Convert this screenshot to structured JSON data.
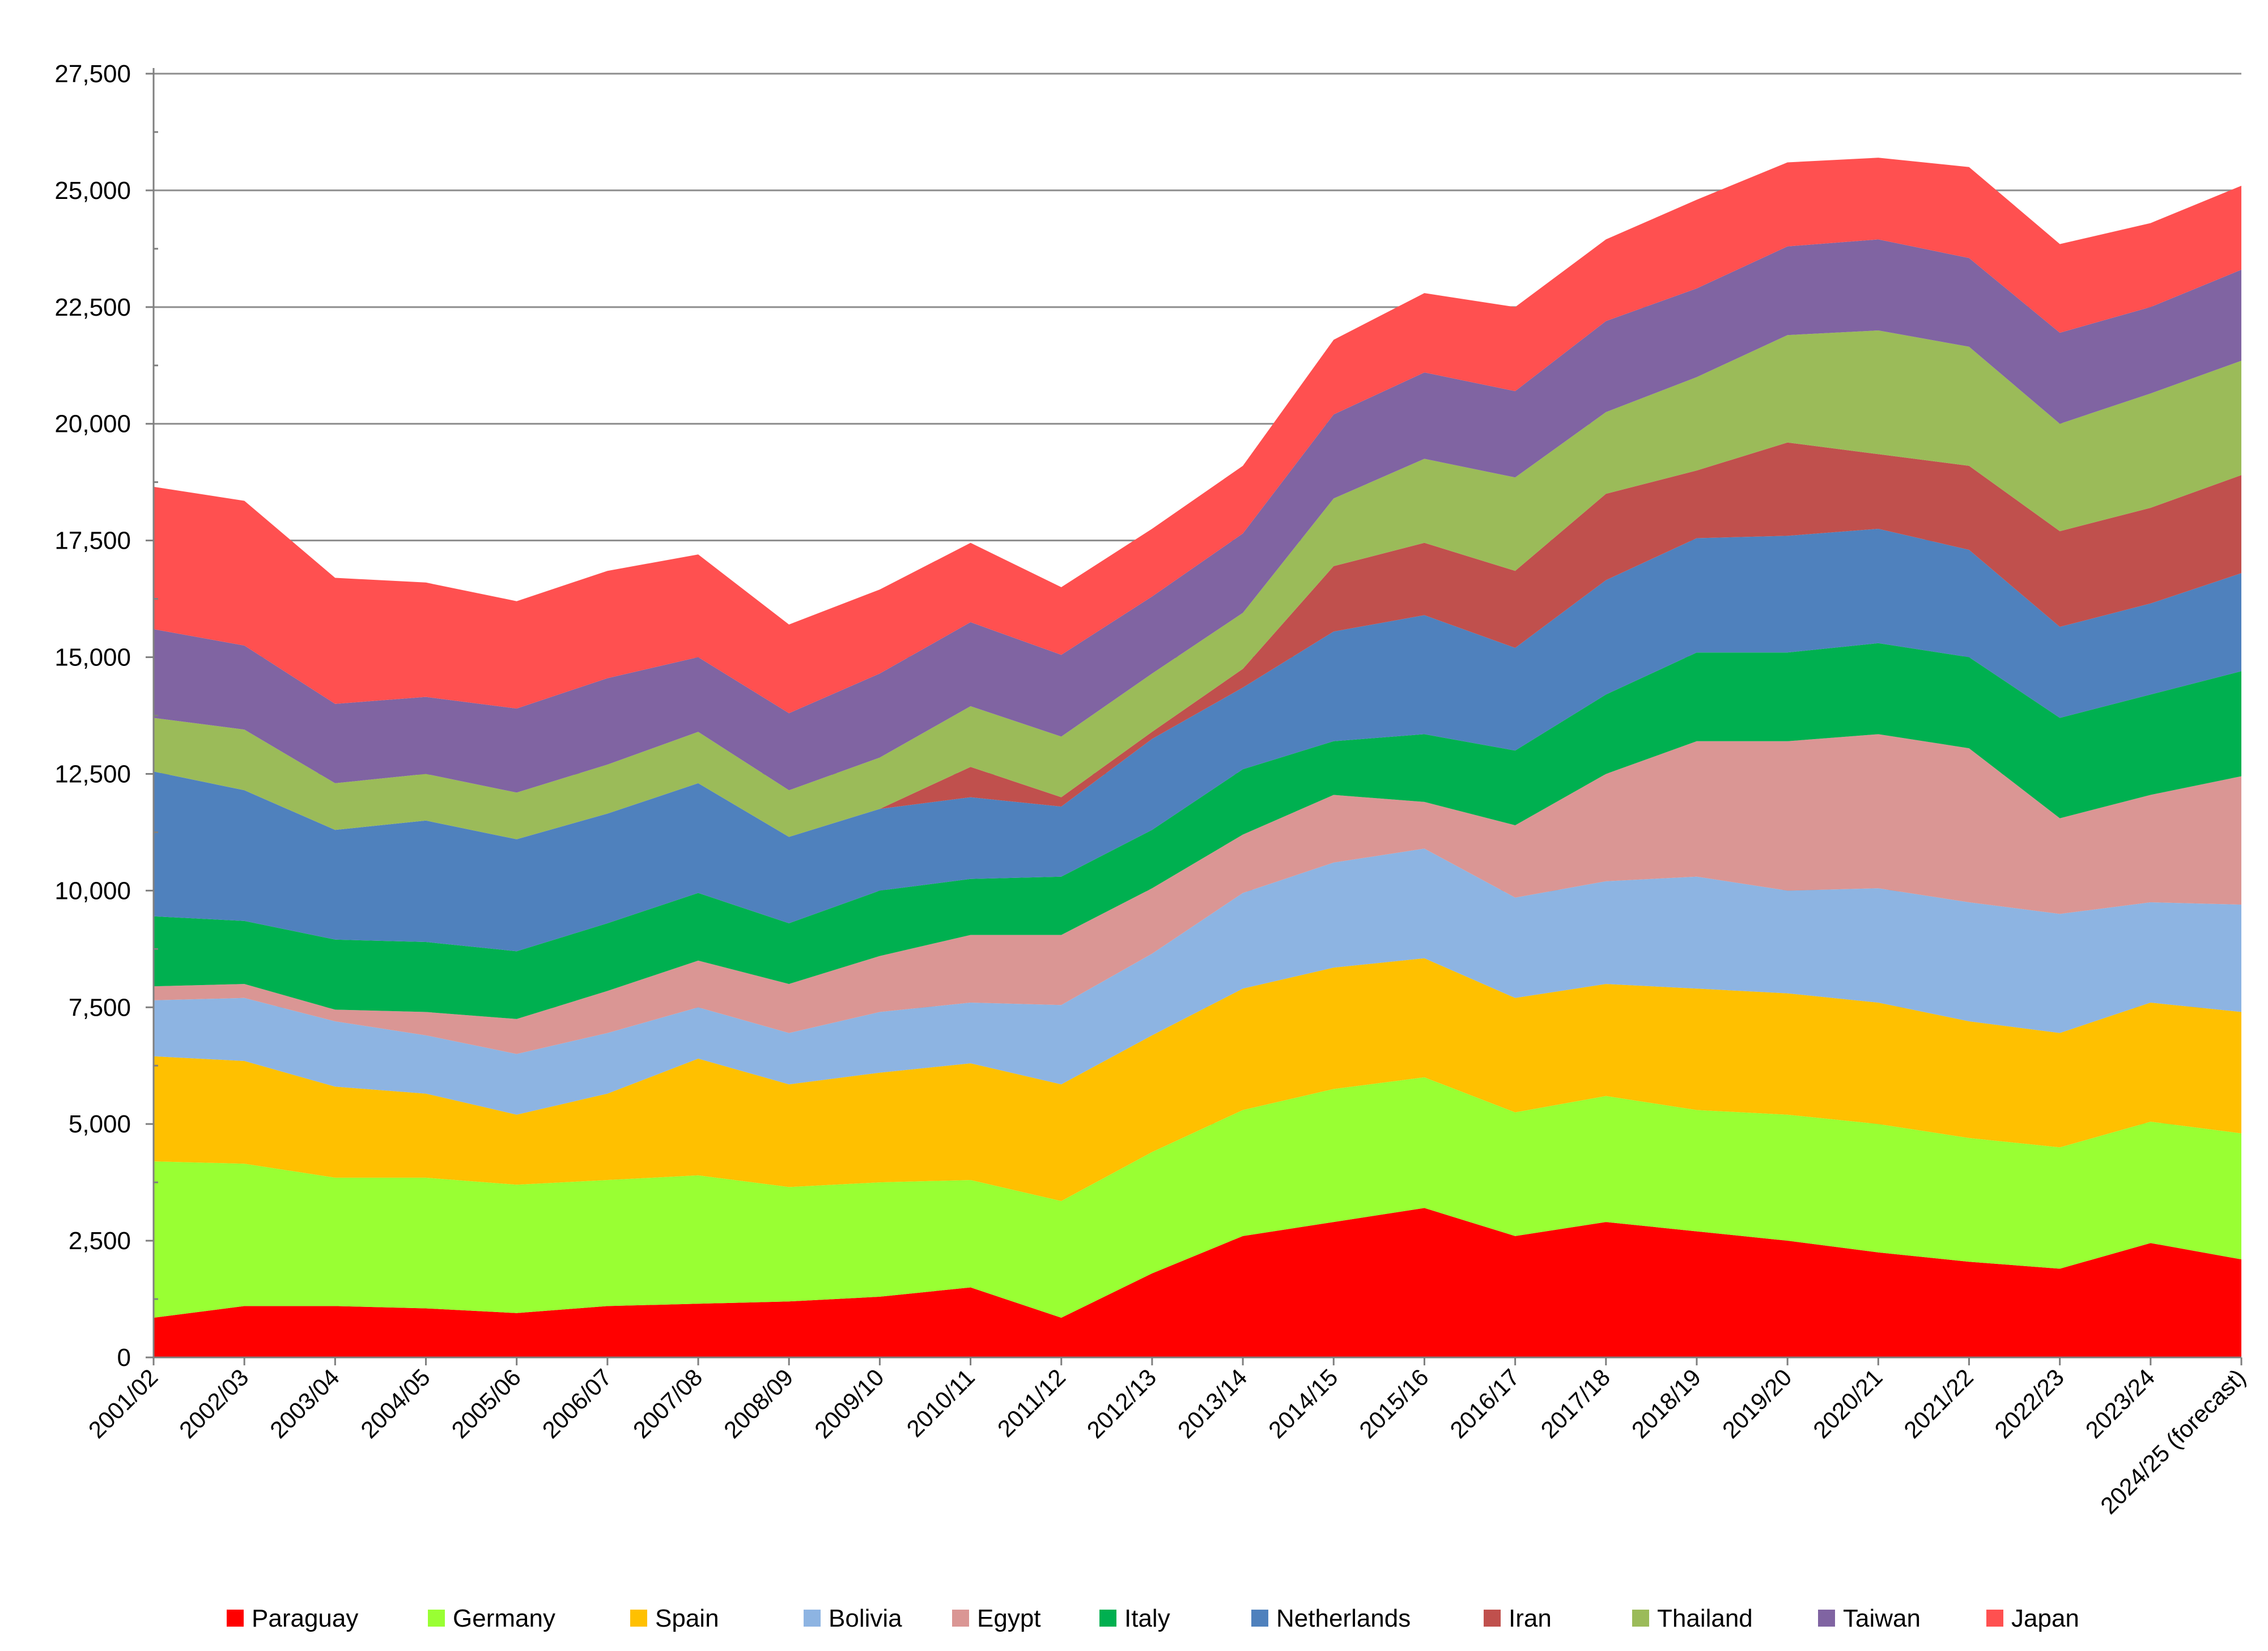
{
  "chart_data": {
    "type": "area",
    "stacked": true,
    "title": "",
    "xlabel": "",
    "ylabel": "",
    "ylim": [
      0,
      27500
    ],
    "yticks": [
      0,
      2500,
      5000,
      7500,
      10000,
      12500,
      15000,
      17500,
      20000,
      22500,
      25000,
      27500
    ],
    "ytick_labels": [
      "0",
      "2,500",
      "5,000",
      "7,500",
      "10,000",
      "12,500",
      "15,000",
      "17,500",
      "20,000",
      "22,500",
      "25,000",
      "27,500"
    ],
    "grid": "horizontal major gridlines",
    "legend_position": "bottom",
    "categories": [
      "2001/02",
      "2002/03",
      "2003/04",
      "2004/05",
      "2005/06",
      "2006/07",
      "2007/08",
      "2008/09",
      "2009/10",
      "2010/11",
      "2011/12",
      "2012/13",
      "2013/14",
      "2014/15",
      "2015/16",
      "2016/17",
      "2017/18",
      "2018/19",
      "2019/20",
      "2020/21",
      "2021/22",
      "2022/23",
      "2023/24",
      "2024/25 (forecast)"
    ],
    "series": [
      {
        "name": "Paraguay",
        "color": "#ff0000",
        "values": [
          850,
          1100,
          1100,
          1050,
          950,
          1100,
          1150,
          1200,
          1300,
          1500,
          850,
          1800,
          2600,
          2900,
          3200,
          2600,
          2900,
          2700,
          2500,
          2250,
          2050,
          1900,
          2450,
          2100
        ]
      },
      {
        "name": "Germany",
        "color": "#99ff33",
        "values": [
          3350,
          3050,
          2750,
          2800,
          2750,
          2700,
          2750,
          2450,
          2450,
          2300,
          2500,
          2600,
          2700,
          2850,
          2800,
          2650,
          2700,
          2600,
          2700,
          2750,
          2650,
          2600,
          2600,
          2700
        ]
      },
      {
        "name": "Spain",
        "color": "#ffc000",
        "values": [
          2250,
          2200,
          1950,
          1800,
          1500,
          1850,
          2500,
          2200,
          2350,
          2500,
          2500,
          2500,
          2600,
          2600,
          2550,
          2450,
          2400,
          2600,
          2600,
          2600,
          2500,
          2450,
          2550,
          2600
        ]
      },
      {
        "name": "Bolivia",
        "color": "#8db4e2",
        "values": [
          1200,
          1350,
          1400,
          1250,
          1300,
          1300,
          1100,
          1100,
          1300,
          1300,
          1700,
          1750,
          2050,
          2250,
          2350,
          2150,
          2200,
          2400,
          2200,
          2450,
          2550,
          2550,
          2150,
          2300
        ]
      },
      {
        "name": "Egypt",
        "color": "#da9694",
        "values": [
          300,
          300,
          250,
          500,
          750,
          900,
          1000,
          1050,
          1200,
          1450,
          1500,
          1400,
          1250,
          1450,
          1000,
          1550,
          2300,
          2900,
          3200,
          3300,
          3300,
          2050,
          2300,
          2750
        ]
      },
      {
        "name": "Italy",
        "color": "#00b050",
        "values": [
          1500,
          1350,
          1500,
          1500,
          1450,
          1450,
          1450,
          1300,
          1400,
          1200,
          1250,
          1250,
          1400,
          1150,
          1450,
          1600,
          1700,
          1900,
          1900,
          1950,
          1950,
          2150,
          2150,
          2250
        ]
      },
      {
        "name": "Netherlands",
        "color": "#4f81bd",
        "values": [
          3100,
          2800,
          2350,
          2600,
          2400,
          2350,
          2350,
          1850,
          1750,
          1750,
          1500,
          1950,
          1750,
          2350,
          2550,
          2200,
          2450,
          2450,
          2500,
          2450,
          2300,
          1950,
          1950,
          2100
        ]
      },
      {
        "name": "Iran",
        "color": "#c0504d",
        "values": [
          0,
          0,
          0,
          0,
          0,
          0,
          0,
          0,
          0,
          650,
          200,
          150,
          400,
          1400,
          1550,
          1650,
          1850,
          1450,
          2000,
          1600,
          1800,
          2050,
          2050,
          2100
        ]
      },
      {
        "name": "Thailand",
        "color": "#9bbb59",
        "values": [
          1150,
          1300,
          1000,
          1000,
          1000,
          1050,
          1100,
          1000,
          1100,
          1300,
          1300,
          1250,
          1200,
          1450,
          1800,
          2000,
          1750,
          2000,
          2300,
          2650,
          2550,
          2300,
          2450,
          2450
        ]
      },
      {
        "name": "Taiwan",
        "color": "#8064a2",
        "values": [
          1900,
          1800,
          1700,
          1650,
          1800,
          1850,
          1600,
          1650,
          1800,
          1800,
          1750,
          1650,
          1700,
          1800,
          1850,
          1850,
          1950,
          1900,
          1900,
          1950,
          1900,
          1950,
          1850,
          1950
        ]
      },
      {
        "name": "Japan",
        "color": "#ff5050",
        "values": [
          3050,
          3100,
          2700,
          2450,
          2300,
          2300,
          2200,
          1900,
          1800,
          1700,
          1450,
          1450,
          1450,
          1600,
          1700,
          1800,
          1750,
          1900,
          1800,
          1750,
          1950,
          1900,
          1800,
          1800
        ]
      }
    ]
  }
}
